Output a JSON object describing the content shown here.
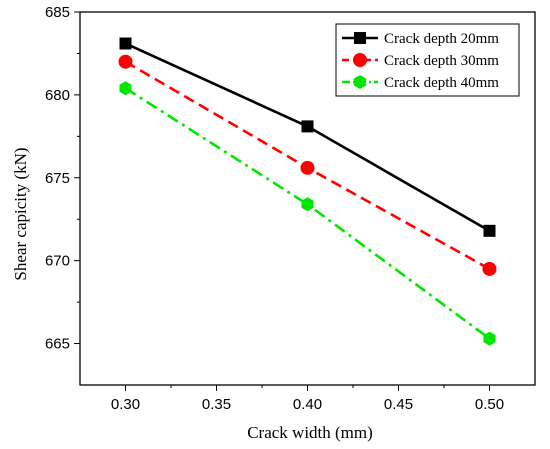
{
  "chart_data": {
    "type": "line",
    "xlabel": "Crack width (mm)",
    "ylabel": "Shear capicity (kN)",
    "x": [
      0.3,
      0.4,
      0.5
    ],
    "xlim": [
      0.275,
      0.525
    ],
    "ylim": [
      662.5,
      685
    ],
    "xticks": [
      "0.30",
      "0.35",
      "0.40",
      "0.45",
      "0.50"
    ],
    "yticks": [
      "665",
      "670",
      "675",
      "680",
      "685"
    ],
    "legend_position": "top-right",
    "series": [
      {
        "name": "Crack depth 20mm",
        "values": [
          683.1,
          678.1,
          671.8
        ],
        "color": "#000000",
        "marker": "square",
        "dash": "solid"
      },
      {
        "name": "Crack depth 30mm",
        "values": [
          682.0,
          675.6,
          669.5
        ],
        "color": "#ff0000",
        "marker": "circle",
        "dash": "dashed"
      },
      {
        "name": "Crack depth 40mm",
        "values": [
          680.4,
          673.4,
          665.3
        ],
        "color": "#00e600",
        "marker": "hexagon",
        "dash": "dashdot"
      }
    ]
  }
}
